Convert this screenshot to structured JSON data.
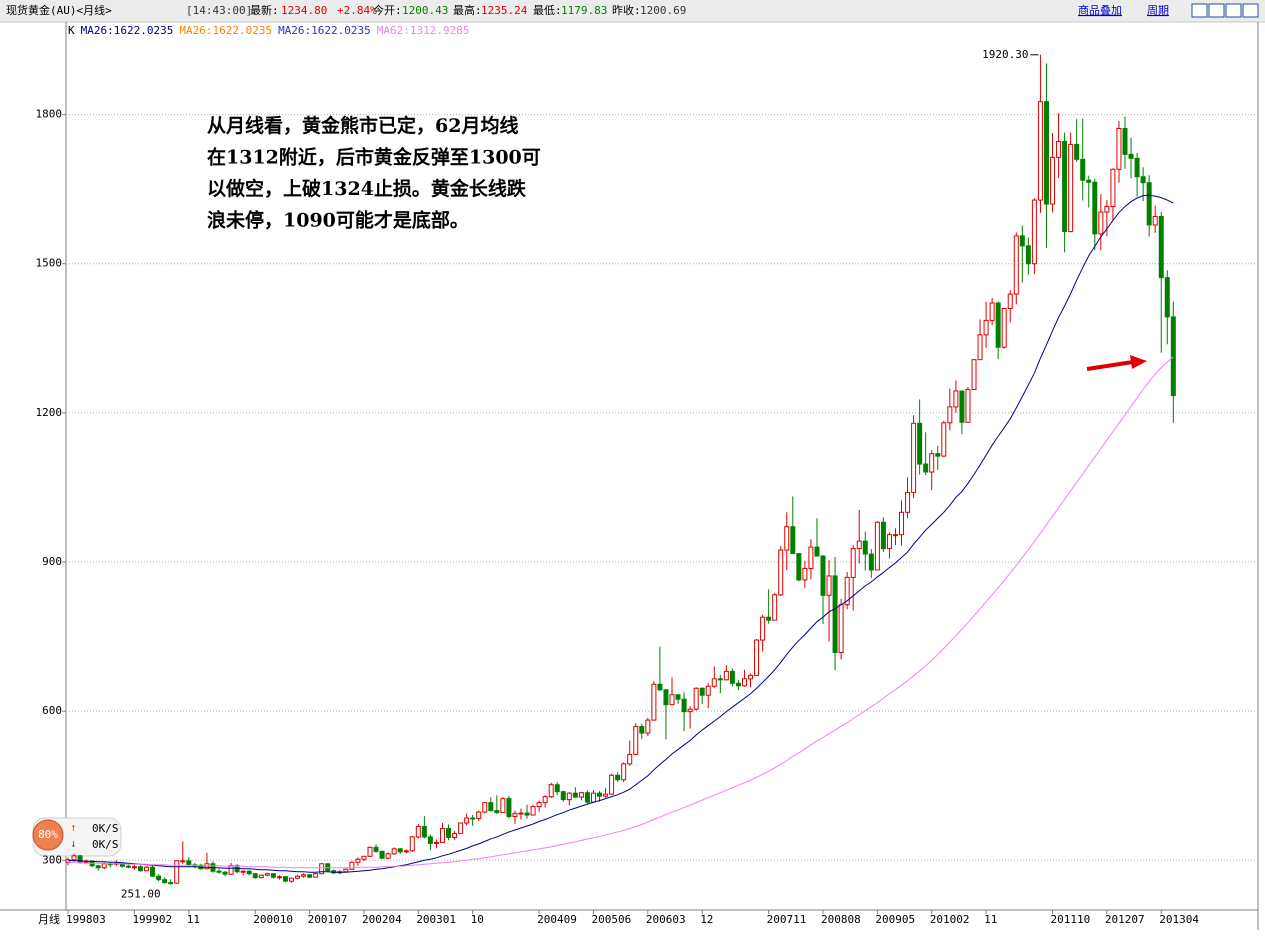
{
  "header": {
    "items": [
      "现货黄金(AU)<月线>",
      "[14:43:00]",
      "最新:",
      "1234.80",
      "+2.84%",
      "今开:",
      "1200.43",
      "最高:",
      "1235.24",
      "最低:",
      "1179.83",
      "昨收:",
      "1200.69"
    ],
    "links": [
      "商品叠加",
      "周期"
    ]
  },
  "widget": {
    "percent": "80%",
    "up_speed": "0K/S",
    "down_speed": "0K/S"
  },
  "chart_data": {
    "type": "candlestick",
    "x_axis_name": "月线",
    "legend_items": [
      {
        "text": "K",
        "color": "#000000"
      },
      {
        "text": "MA26:1622.0235",
        "color": "#000080"
      },
      {
        "text": "MA26:1622.0235",
        "color": "#ff8000"
      },
      {
        "text": "MA26:1622.0235",
        "color": "#3030c0"
      },
      {
        "text": "MA62:1312.9285",
        "color": "#ee82ee"
      }
    ],
    "annotation": [
      "从月线看，黄金熊市已定，62月均线",
      "在1312附近，后市黄金反弹至1300可",
      "以做空，上破1324止损。黄金长线跌",
      "浪未停，1090可能才是底部。"
    ],
    "max_label": "1920.30",
    "min_label": "251.00",
    "up_color": "#e00000",
    "down_color": "#008000",
    "ylim": [
      200,
      1940
    ],
    "yticks": [
      300,
      600,
      900,
      1200,
      1500,
      1800
    ],
    "grid": true,
    "categories": [
      "199803",
      null,
      null,
      null,
      null,
      null,
      null,
      null,
      null,
      null,
      null,
      "199902",
      null,
      null,
      null,
      null,
      null,
      null,
      null,
      null,
      "11",
      null,
      null,
      null,
      null,
      null,
      null,
      null,
      null,
      null,
      null,
      "200010",
      null,
      null,
      null,
      null,
      null,
      null,
      null,
      null,
      "200107",
      null,
      null,
      null,
      null,
      null,
      null,
      null,
      null,
      "200204",
      null,
      null,
      null,
      null,
      null,
      null,
      null,
      null,
      "200301",
      null,
      null,
      null,
      null,
      null,
      null,
      null,
      null,
      "10",
      null,
      null,
      null,
      null,
      null,
      null,
      null,
      null,
      null,
      null,
      "200409",
      null,
      null,
      null,
      null,
      null,
      null,
      null,
      null,
      "200506",
      null,
      null,
      null,
      null,
      null,
      null,
      null,
      null,
      "200603",
      null,
      null,
      null,
      null,
      null,
      null,
      null,
      null,
      "12",
      null,
      null,
      null,
      null,
      null,
      null,
      null,
      null,
      null,
      null,
      "200711",
      null,
      null,
      null,
      null,
      null,
      null,
      null,
      null,
      "200808",
      null,
      null,
      null,
      null,
      null,
      null,
      null,
      null,
      "200905",
      null,
      null,
      null,
      null,
      null,
      null,
      null,
      null,
      "201002",
      null,
      null,
      null,
      null,
      null,
      null,
      null,
      null,
      "11",
      null,
      null,
      null,
      null,
      null,
      null,
      null,
      null,
      null,
      null,
      "201110",
      null,
      null,
      null,
      null,
      null,
      null,
      null,
      null,
      "201207",
      null,
      null,
      null,
      null,
      null,
      null,
      null,
      null,
      "201304",
      null,
      null
    ],
    "open": [
      296,
      301,
      309,
      296,
      298,
      289,
      285,
      293,
      292,
      294,
      288,
      286,
      287,
      279,
      286,
      268,
      261,
      255,
      254,
      299,
      299,
      291,
      290,
      283,
      293,
      278,
      276,
      272,
      289,
      277,
      278,
      273,
      265,
      270,
      273,
      266,
      267,
      258,
      264,
      268,
      271,
      266,
      273,
      293,
      279,
      275,
      277,
      282,
      296,
      302,
      308,
      326,
      318,
      304,
      313,
      323,
      317,
      319,
      347,
      368,
      347,
      334,
      336,
      364,
      346,
      354,
      375,
      385,
      384,
      397,
      416,
      400,
      396,
      424,
      388,
      394,
      395,
      391,
      408,
      416,
      428,
      452,
      438,
      422,
      435,
      427,
      436,
      417,
      435,
      429,
      433,
      471,
      462,
      494,
      513,
      569,
      556,
      582,
      654,
      643,
      613,
      633,
      624,
      599,
      604,
      646,
      632,
      650,
      665,
      663,
      680,
      656,
      651,
      665,
      672,
      743,
      789,
      783,
      834,
      924,
      971,
      917,
      864,
      887,
      930,
      912,
      833,
      872,
      718,
      814,
      869,
      927,
      942,
      916,
      884,
      980,
      927,
      955,
      955,
      1000,
      1040,
      1179,
      1097,
      1081,
      1118,
      1113,
      1180,
      1212,
      1244,
      1181,
      1247,
      1307,
      1357,
      1386,
      1421,
      1332,
      1410,
      1439,
      1556,
      1536,
      1500,
      1628,
      1826,
      1620,
      1714,
      1746,
      1565,
      1740,
      1710,
      1668,
      1664,
      1560,
      1604,
      1615,
      1690,
      1772,
      1720,
      1712,
      1675,
      1663,
      1578,
      1595,
      1472,
      1393
    ],
    "high": [
      305,
      313,
      311,
      302,
      300,
      291,
      296,
      297,
      300,
      297,
      293,
      291,
      290,
      288,
      291,
      272,
      266,
      262,
      300,
      338,
      306,
      295,
      293,
      315,
      298,
      283,
      279,
      295,
      292,
      280,
      280,
      274,
      271,
      275,
      274,
      270,
      269,
      265,
      271,
      274,
      272,
      275,
      294,
      294,
      281,
      280,
      283,
      298,
      306,
      309,
      328,
      332,
      319,
      316,
      326,
      325,
      322,
      349,
      373,
      389,
      352,
      342,
      375,
      372,
      359,
      376,
      394,
      391,
      400,
      417,
      427,
      431,
      427,
      430,
      400,
      404,
      412,
      412,
      420,
      431,
      456,
      457,
      440,
      437,
      447,
      438,
      441,
      441,
      439,
      445,
      474,
      477,
      497,
      541,
      576,
      575,
      587,
      660,
      730,
      644,
      668,
      633,
      638,
      610,
      648,
      648,
      656,
      690,
      673,
      692,
      686,
      663,
      683,
      676,
      745,
      794,
      845,
      838,
      932,
      1000,
      1032,
      918,
      902,
      946,
      988,
      914,
      904,
      910,
      826,
      880,
      934,
      1005,
      961,
      926,
      982,
      990,
      960,
      968,
      1024,
      1070,
      1195,
      1227,
      1161,
      1125,
      1134,
      1184,
      1249,
      1265,
      1236,
      1252,
      1307,
      1388,
      1424,
      1431,
      1424,
      1411,
      1447,
      1563,
      1577,
      1553,
      1632,
      1920.3,
      1903,
      1763,
      1803,
      1764,
      1764,
      1791,
      1792,
      1677,
      1671,
      1640,
      1628,
      1692,
      1787,
      1796,
      1754,
      1723,
      1694,
      1678,
      1617,
      1604,
      1487,
      1424
    ],
    "low": [
      290,
      297,
      293,
      292,
      286,
      279,
      282,
      286,
      288,
      285,
      284,
      281,
      277,
      278,
      267,
      258,
      253,
      251,
      253,
      293,
      287,
      284,
      281,
      282,
      275,
      273,
      268,
      271,
      274,
      270,
      270,
      263,
      264,
      268,
      263,
      261,
      256,
      255,
      262,
      265,
      264,
      266,
      272,
      276,
      272,
      272,
      276,
      281,
      289,
      298,
      307,
      315,
      303,
      302,
      311,
      313,
      314,
      317,
      344,
      344,
      320,
      324,
      335,
      340,
      341,
      354,
      370,
      369,
      379,
      395,
      398,
      393,
      395,
      384,
      373,
      382,
      384,
      390,
      398,
      406,
      425,
      431,
      418,
      410,
      426,
      421,
      414,
      415,
      418,
      426,
      432,
      458,
      457,
      490,
      511,
      544,
      550,
      581,
      640,
      543,
      611,
      614,
      560,
      565,
      601,
      614,
      606,
      646,
      636,
      662,
      650,
      642,
      649,
      648,
      671,
      720,
      776,
      784,
      832,
      884,
      917,
      861,
      848,
      865,
      915,
      775,
      740,
      682,
      704,
      805,
      802,
      897,
      883,
      868,
      885,
      920,
      907,
      934,
      933,
      988,
      1028,
      1076,
      1075,
      1045,
      1085,
      1111,
      1165,
      1200,
      1157,
      1180,
      1246,
      1316,
      1331,
      1376,
      1308,
      1329,
      1382,
      1418,
      1462,
      1478,
      1479,
      1602,
      1532,
      1603,
      1672,
      1523,
      1563,
      1705,
      1627,
      1613,
      1527,
      1527,
      1556,
      1588,
      1663,
      1691,
      1672,
      1635,
      1626,
      1555,
      1562,
      1321,
      1338,
      1179.83
    ],
    "close": [
      301,
      309,
      296,
      298,
      289,
      285,
      293,
      292,
      294,
      288,
      286,
      287,
      279,
      286,
      268,
      261,
      255,
      254,
      299,
      299,
      291,
      290,
      283,
      293,
      278,
      276,
      272,
      289,
      277,
      278,
      273,
      265,
      270,
      273,
      266,
      267,
      258,
      264,
      268,
      271,
      266,
      273,
      293,
      279,
      275,
      277,
      282,
      296,
      302,
      308,
      326,
      318,
      304,
      313,
      323,
      317,
      319,
      347,
      368,
      347,
      334,
      336,
      364,
      346,
      354,
      375,
      385,
      384,
      397,
      416,
      400,
      396,
      424,
      388,
      394,
      395,
      391,
      408,
      416,
      428,
      452,
      438,
      422,
      435,
      427,
      436,
      417,
      435,
      429,
      433,
      471,
      462,
      494,
      513,
      569,
      556,
      582,
      654,
      643,
      613,
      633,
      624,
      599,
      604,
      646,
      632,
      650,
      665,
      663,
      680,
      656,
      651,
      665,
      672,
      743,
      789,
      783,
      834,
      924,
      971,
      917,
      864,
      887,
      930,
      912,
      833,
      872,
      718,
      814,
      869,
      927,
      942,
      916,
      884,
      980,
      927,
      955,
      955,
      1000,
      1040,
      1179,
      1097,
      1081,
      1118,
      1113,
      1180,
      1212,
      1244,
      1181,
      1247,
      1307,
      1357,
      1386,
      1421,
      1332,
      1410,
      1439,
      1556,
      1536,
      1500,
      1628,
      1826,
      1620,
      1714,
      1746,
      1565,
      1740,
      1710,
      1668,
      1664,
      1560,
      1604,
      1615,
      1690,
      1772,
      1720,
      1712,
      1675,
      1663,
      1578,
      1595,
      1472,
      1393,
      1234.8
    ],
    "series": [
      {
        "name": "MA26",
        "color": "#00008b",
        "values": [
          300,
          299,
          299,
          298,
          298,
          297,
          297,
          296,
          296,
          295,
          294,
          293,
          292,
          291,
          290,
          289,
          288,
          287,
          287,
          287,
          287,
          287,
          286,
          286,
          285,
          285,
          284,
          284,
          284,
          283,
          283,
          282,
          281,
          281,
          280,
          279,
          279,
          278,
          277,
          277,
          276,
          276,
          277,
          277,
          276,
          276,
          276,
          277,
          278,
          279,
          280,
          282,
          283,
          285,
          287,
          289,
          291,
          294,
          297,
          300,
          302,
          305,
          309,
          312,
          316,
          320,
          324,
          329,
          333,
          338,
          343,
          347,
          352,
          357,
          361,
          365,
          369,
          373,
          378,
          382,
          387,
          392,
          396,
          401,
          405,
          409,
          413,
          417,
          420,
          424,
          428,
          432,
          437,
          443,
          452,
          461,
          470,
          482,
          493,
          503,
          514,
          523,
          532,
          541,
          552,
          562,
          571,
          580,
          589,
          599,
          608,
          617,
          626,
          635,
          646,
          658,
          670,
          683,
          698,
          714,
          729,
          742,
          754,
          767,
          780,
          789,
          800,
          806,
          814,
          822,
          832,
          842,
          852,
          860,
          870,
          879,
          889,
          898,
          909,
          920,
          936,
          950,
          964,
          976,
          988,
          1000,
          1014,
          1030,
          1042,
          1058,
          1076,
          1095,
          1115,
          1135,
          1153,
          1170,
          1188,
          1210,
          1233,
          1256,
          1280,
          1310,
          1337,
          1365,
          1392,
          1415,
          1440,
          1467,
          1492,
          1516,
          1535,
          1554,
          1570,
          1587,
          1603,
          1615,
          1625,
          1632,
          1637,
          1638,
          1636,
          1633,
          1628,
          1622.0235
        ]
      },
      {
        "name": "MA62",
        "color": "#ee82ee",
        "values": [
          295,
          295,
          295,
          294,
          294,
          294,
          294,
          293,
          293,
          293,
          292,
          292,
          292,
          292,
          291,
          291,
          291,
          290,
          290,
          290,
          290,
          290,
          289,
          289,
          289,
          289,
          288,
          288,
          288,
          288,
          287,
          287,
          287,
          287,
          286,
          286,
          286,
          285,
          285,
          285,
          285,
          285,
          285,
          285,
          285,
          285,
          285,
          285,
          286,
          286,
          286,
          286,
          287,
          287,
          288,
          288,
          289,
          290,
          291,
          292,
          293,
          294,
          295,
          296,
          297,
          299,
          300,
          302,
          303,
          305,
          307,
          309,
          311,
          313,
          315,
          317,
          319,
          321,
          323,
          325,
          327,
          330,
          332,
          335,
          337,
          340,
          343,
          345,
          348,
          351,
          354,
          357,
          360,
          364,
          368,
          372,
          377,
          382,
          387,
          392,
          397,
          401,
          406,
          411,
          416,
          421,
          426,
          431,
          436,
          441,
          446,
          451,
          456,
          461,
          467,
          473,
          479,
          486,
          493,
          501,
          509,
          516,
          524,
          532,
          540,
          547,
          555,
          562,
          570,
          577,
          585,
          593,
          601,
          609,
          617,
          626,
          635,
          643,
          652,
          661,
          671,
          681,
          691,
          702,
          714,
          726,
          739,
          752,
          765,
          778,
          792,
          806,
          820,
          834,
          848,
          863,
          878,
          893,
          909,
          925,
          941,
          958,
          975,
          992,
          1009,
          1026,
          1043,
          1060,
          1077,
          1094,
          1111,
          1128,
          1145,
          1162,
          1179,
          1196,
          1213,
          1230,
          1247,
          1263,
          1278,
          1291,
          1302,
          1312.9285
        ]
      }
    ]
  }
}
